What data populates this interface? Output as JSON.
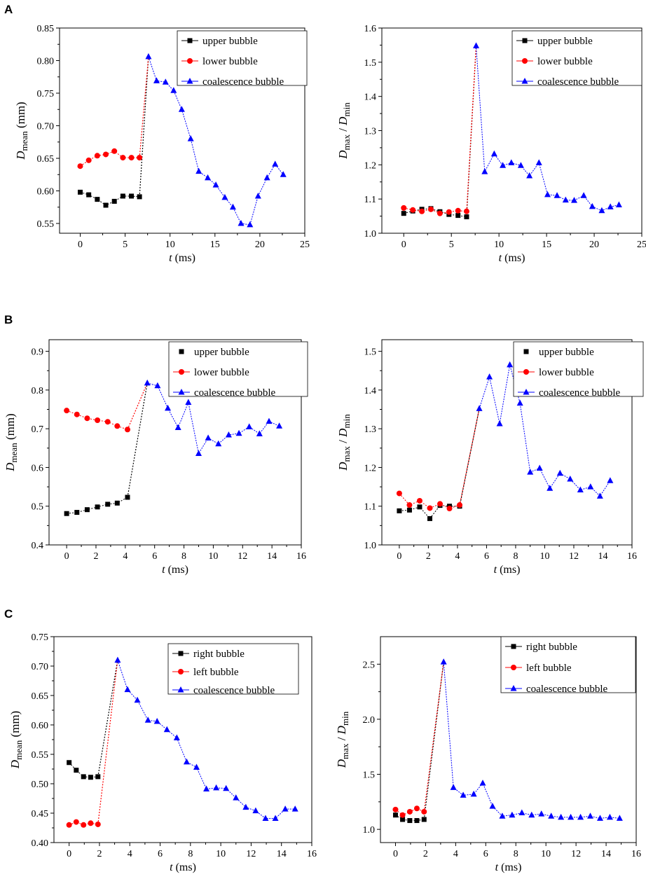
{
  "panels": [
    {
      "label": "A"
    },
    {
      "label": "B"
    },
    {
      "label": "C"
    }
  ],
  "chart_data": [
    {
      "type": "line",
      "panel": "A",
      "side": "left",
      "xlabel_var": "t",
      "xlabel_unit": "(ms)",
      "ylabel_var": "D",
      "ylabel_sub": "mean",
      "ylabel_tail": " (mm)",
      "xlim": [
        -2.3,
        25
      ],
      "ylim": [
        0.535,
        0.85
      ],
      "xticks": [
        0,
        5,
        10,
        15,
        20,
        25
      ],
      "xtick_labels": [
        "0",
        "5",
        "10",
        "15",
        "20",
        "25"
      ],
      "yticks": [
        0.55,
        0.6,
        0.65,
        0.7,
        0.75,
        0.8,
        0.85
      ],
      "ytick_labels": [
        "0.55",
        "0.60",
        "0.65",
        "0.70",
        "0.75",
        "0.80",
        "0.85"
      ],
      "legend_position": "top-right",
      "legend_lines": true,
      "series": [
        {
          "name": "upper bubble",
          "color": "#000000",
          "marker": "square",
          "x": [
            0,
            0.95,
            1.9,
            2.85,
            3.8,
            4.75,
            5.7,
            6.6
          ],
          "y": [
            0.598,
            0.594,
            0.587,
            0.578,
            0.584,
            0.592,
            0.592,
            0.591
          ]
        },
        {
          "name": "lower bubble",
          "color": "#ff0000",
          "marker": "circle",
          "x": [
            0,
            0.95,
            1.9,
            2.85,
            3.8,
            4.75,
            5.7,
            6.6
          ],
          "y": [
            0.638,
            0.647,
            0.654,
            0.656,
            0.661,
            0.651,
            0.651,
            0.651
          ]
        },
        {
          "name": "coalescence bubble",
          "color": "#0000ff",
          "marker": "triangle",
          "x": [
            7.6,
            8.5,
            9.5,
            10.4,
            11.3,
            12.3,
            13.2,
            14.2,
            15.1,
            16.1,
            17.0,
            17.9,
            18.9,
            19.8,
            20.8,
            21.7,
            22.6
          ],
          "y": [
            0.806,
            0.769,
            0.767,
            0.754,
            0.725,
            0.68,
            0.63,
            0.62,
            0.609,
            0.59,
            0.575,
            0.55,
            0.548,
            0.592,
            0.62,
            0.641,
            0.625
          ]
        }
      ],
      "connectors": [
        {
          "from": "upper bubble",
          "color": "#000000"
        },
        {
          "from": "lower bubble",
          "color": "#ff0000"
        }
      ]
    },
    {
      "type": "line",
      "panel": "A",
      "side": "right",
      "xlabel_var": "t",
      "xlabel_unit": "(ms)",
      "ylabel_var": "D",
      "ylabel_sub": "max",
      "ylabel_mid": " / ",
      "ylabel_var2": "D",
      "ylabel_sub2": "min",
      "xlim": [
        -2.3,
        25
      ],
      "ylim": [
        1.0,
        1.6
      ],
      "xticks": [
        0,
        5,
        10,
        15,
        20,
        25
      ],
      "xtick_labels": [
        "0",
        "5",
        "10",
        "15",
        "20",
        "25"
      ],
      "yticks": [
        1.0,
        1.1,
        1.2,
        1.3,
        1.4,
        1.5,
        1.6
      ],
      "ytick_labels": [
        "1.0",
        "1.1",
        "1.2",
        "1.3",
        "1.4",
        "1.5",
        "1.6"
      ],
      "legend_position": "top-right",
      "legend_lines": true,
      "series": [
        {
          "name": "upper bubble",
          "color": "#000000",
          "marker": "square",
          "x": [
            0,
            0.95,
            1.9,
            2.85,
            3.8,
            4.75,
            5.7,
            6.6
          ],
          "y": [
            1.058,
            1.065,
            1.07,
            1.072,
            1.063,
            1.055,
            1.052,
            1.048
          ]
        },
        {
          "name": "lower bubble",
          "color": "#ff0000",
          "marker": "circle",
          "x": [
            0,
            0.95,
            1.9,
            2.85,
            3.8,
            4.75,
            5.7,
            6.6
          ],
          "y": [
            1.074,
            1.068,
            1.064,
            1.07,
            1.058,
            1.062,
            1.066,
            1.064
          ]
        },
        {
          "name": "coalescence bubble",
          "color": "#0000ff",
          "marker": "triangle",
          "x": [
            7.6,
            8.5,
            9.5,
            10.4,
            11.3,
            12.3,
            13.2,
            14.2,
            15.1,
            16.1,
            17.0,
            17.9,
            18.9,
            19.8,
            20.8,
            21.7,
            22.6
          ],
          "y": [
            1.548,
            1.18,
            1.232,
            1.198,
            1.206,
            1.198,
            1.168,
            1.206,
            1.113,
            1.11,
            1.097,
            1.096,
            1.11,
            1.078,
            1.066,
            1.077,
            1.083
          ]
        }
      ],
      "connectors": [
        {
          "from": "upper bubble",
          "color": "#000000"
        },
        {
          "from": "lower bubble",
          "color": "#ff0000"
        }
      ]
    },
    {
      "type": "line",
      "panel": "B",
      "side": "left",
      "xlabel_var": "t",
      "xlabel_unit": "(ms)",
      "ylabel_var": "D",
      "ylabel_sub": "mean",
      "ylabel_tail": " (mm)",
      "xlim": [
        -1.2,
        16
      ],
      "ylim": [
        0.4,
        0.93
      ],
      "xticks": [
        0,
        2,
        4,
        6,
        8,
        10,
        12,
        14,
        16
      ],
      "xtick_labels": [
        "0",
        "2",
        "4",
        "6",
        "8",
        "10",
        "12",
        "14",
        "16"
      ],
      "yticks": [
        0.4,
        0.5,
        0.6,
        0.7,
        0.8,
        0.9
      ],
      "ytick_labels": [
        "0.4",
        "0.5",
        "0.6",
        "0.7",
        "0.8",
        "0.9"
      ],
      "legend_position": "top-right",
      "legend_lines": [
        false,
        true,
        true
      ],
      "series": [
        {
          "name": "upper bubble",
          "color": "#000000",
          "marker": "square",
          "x": [
            0,
            0.7,
            1.4,
            2.1,
            2.8,
            3.45,
            4.15
          ],
          "y": [
            0.481,
            0.484,
            0.491,
            0.498,
            0.505,
            0.508,
            0.523
          ]
        },
        {
          "name": "lower bubble",
          "color": "#ff0000",
          "marker": "circle",
          "x": [
            0,
            0.7,
            1.4,
            2.1,
            2.8,
            3.45,
            4.15
          ],
          "y": [
            0.747,
            0.737,
            0.727,
            0.722,
            0.718,
            0.707,
            0.698
          ]
        },
        {
          "name": "coalescence bubble",
          "color": "#0000ff",
          "marker": "triangle",
          "x": [
            5.5,
            6.2,
            6.9,
            7.6,
            8.3,
            9.0,
            9.65,
            10.35,
            11.05,
            11.75,
            12.45,
            13.15,
            13.8,
            14.5
          ],
          "y": [
            0.818,
            0.811,
            0.753,
            0.703,
            0.768,
            0.636,
            0.676,
            0.661,
            0.684,
            0.688,
            0.705,
            0.687,
            0.719,
            0.707
          ]
        }
      ],
      "connectors": [
        {
          "from": "upper bubble",
          "color": "#000000"
        },
        {
          "from": "lower bubble",
          "color": "#ff0000"
        }
      ]
    },
    {
      "type": "line",
      "panel": "B",
      "side": "right",
      "xlabel_var": "t",
      "xlabel_unit": "(ms)",
      "ylabel_var": "D",
      "ylabel_sub": "max",
      "ylabel_mid": " / ",
      "ylabel_var2": "D",
      "ylabel_sub2": "min",
      "xlim": [
        -1.2,
        16
      ],
      "ylim": [
        1.0,
        1.53
      ],
      "xticks": [
        0,
        2,
        4,
        6,
        8,
        10,
        12,
        14,
        16
      ],
      "xtick_labels": [
        "0",
        "2",
        "4",
        "6",
        "8",
        "10",
        "12",
        "14",
        "16"
      ],
      "yticks": [
        1.0,
        1.1,
        1.2,
        1.3,
        1.4,
        1.5
      ],
      "ytick_labels": [
        "1.0",
        "1.1",
        "1.2",
        "1.3",
        "1.4",
        "1.5"
      ],
      "legend_position": "top-right",
      "legend_lines": [
        false,
        true,
        true
      ],
      "series": [
        {
          "name": "upper bubble",
          "color": "#000000",
          "marker": "square",
          "x": [
            0,
            0.7,
            1.4,
            2.1,
            2.8,
            3.45,
            4.15
          ],
          "y": [
            1.088,
            1.09,
            1.098,
            1.068,
            1.102,
            1.1,
            1.1
          ]
        },
        {
          "name": "lower bubble",
          "color": "#ff0000",
          "marker": "circle",
          "x": [
            0,
            0.7,
            1.4,
            2.1,
            2.8,
            3.45,
            4.15
          ],
          "y": [
            1.133,
            1.103,
            1.114,
            1.095,
            1.106,
            1.094,
            1.103
          ]
        },
        {
          "name": "coalescence bubble",
          "color": "#0000ff",
          "marker": "triangle",
          "x": [
            5.5,
            6.2,
            6.9,
            7.6,
            8.3,
            9.0,
            9.65,
            10.35,
            11.05,
            11.75,
            12.45,
            13.15,
            13.8,
            14.5
          ],
          "y": [
            1.352,
            1.434,
            1.313,
            1.465,
            1.366,
            1.188,
            1.198,
            1.146,
            1.185,
            1.17,
            1.142,
            1.15,
            1.126,
            1.166
          ]
        }
      ],
      "connectors": [
        {
          "from": "upper bubble",
          "color": "#000000"
        },
        {
          "from": "lower bubble",
          "color": "#ff0000"
        }
      ]
    },
    {
      "type": "line",
      "panel": "C",
      "side": "left",
      "xlabel_var": "t",
      "xlabel_unit": "(ms)",
      "ylabel_var": "D",
      "ylabel_sub": "mean",
      "ylabel_tail": " (mm)",
      "xlim": [
        -1.0,
        16
      ],
      "ylim": [
        0.4,
        0.75
      ],
      "xticks": [
        0,
        2,
        4,
        6,
        8,
        10,
        12,
        14,
        16
      ],
      "xtick_labels": [
        "0",
        "2",
        "4",
        "6",
        "8",
        "10",
        "12",
        "14",
        "16"
      ],
      "yticks": [
        0.4,
        0.45,
        0.5,
        0.55,
        0.6,
        0.65,
        0.7,
        0.75
      ],
      "ytick_labels": [
        "0.40",
        "0.45",
        "0.50",
        "0.55",
        "0.60",
        "0.65",
        "0.70",
        "0.75"
      ],
      "legend_position": "top-right",
      "legend_lines": true,
      "series": [
        {
          "name": "right bubble",
          "color": "#000000",
          "marker": "square",
          "x": [
            0,
            0.47,
            0.95,
            1.42,
            1.9
          ],
          "y": [
            0.536,
            0.523,
            0.512,
            0.511,
            0.512
          ]
        },
        {
          "name": "left bubble",
          "color": "#ff0000",
          "marker": "circle",
          "x": [
            0,
            0.47,
            0.95,
            1.42,
            1.9
          ],
          "y": [
            0.43,
            0.435,
            0.43,
            0.433,
            0.431
          ]
        },
        {
          "name": "coalescence bubble",
          "color": "#0000ff",
          "marker": "triangle",
          "x": [
            3.2,
            3.85,
            4.5,
            5.2,
            5.8,
            6.45,
            7.1,
            7.75,
            8.4,
            9.05,
            9.7,
            10.35,
            11.0,
            11.65,
            12.3,
            12.95,
            13.6,
            14.25,
            14.9
          ],
          "y": [
            0.71,
            0.66,
            0.642,
            0.608,
            0.606,
            0.592,
            0.578,
            0.537,
            0.528,
            0.491,
            0.493,
            0.492,
            0.476,
            0.46,
            0.454,
            0.441,
            0.441,
            0.457,
            0.457
          ]
        }
      ],
      "connectors": [
        {
          "from": "right bubble",
          "color": "#000000"
        },
        {
          "from": "left bubble",
          "color": "#ff0000"
        }
      ]
    },
    {
      "type": "line",
      "panel": "C",
      "side": "right",
      "xlabel_var": "t",
      "xlabel_unit": "(ms)",
      "ylabel_var": "D",
      "ylabel_sub": "max",
      "ylabel_mid": " / ",
      "ylabel_var2": "D",
      "ylabel_sub2": "min",
      "xlim": [
        -1.0,
        16
      ],
      "ylim": [
        0.88,
        2.75
      ],
      "xticks": [
        0,
        2,
        4,
        6,
        8,
        10,
        12,
        14,
        16
      ],
      "xtick_labels": [
        "0",
        "2",
        "4",
        "6",
        "8",
        "10",
        "12",
        "14",
        "16"
      ],
      "yticks": [
        1.0,
        1.5,
        2.0,
        2.5
      ],
      "ytick_labels": [
        "1.0",
        "1.5",
        "2.0",
        "2.5"
      ],
      "legend_position": "top-right",
      "legend_lines": true,
      "series": [
        {
          "name": "right bubble",
          "color": "#000000",
          "marker": "square",
          "x": [
            0,
            0.47,
            0.95,
            1.42,
            1.9
          ],
          "y": [
            1.13,
            1.09,
            1.08,
            1.08,
            1.09
          ]
        },
        {
          "name": "left bubble",
          "color": "#ff0000",
          "marker": "circle",
          "x": [
            0,
            0.47,
            0.95,
            1.42,
            1.9
          ],
          "y": [
            1.18,
            1.13,
            1.16,
            1.19,
            1.16
          ]
        },
        {
          "name": "coalescence bubble",
          "color": "#0000ff",
          "marker": "triangle",
          "x": [
            3.2,
            3.85,
            4.5,
            5.2,
            5.8,
            6.45,
            7.1,
            7.75,
            8.4,
            9.05,
            9.7,
            10.35,
            11.0,
            11.65,
            12.3,
            12.95,
            13.6,
            14.25,
            14.9
          ],
          "y": [
            2.52,
            1.38,
            1.31,
            1.32,
            1.42,
            1.21,
            1.12,
            1.13,
            1.15,
            1.13,
            1.14,
            1.12,
            1.11,
            1.11,
            1.11,
            1.12,
            1.1,
            1.11,
            1.1
          ]
        }
      ],
      "connectors": [
        {
          "from": "right bubble",
          "color": "#000000"
        },
        {
          "from": "left bubble",
          "color": "#ff0000"
        }
      ]
    }
  ]
}
